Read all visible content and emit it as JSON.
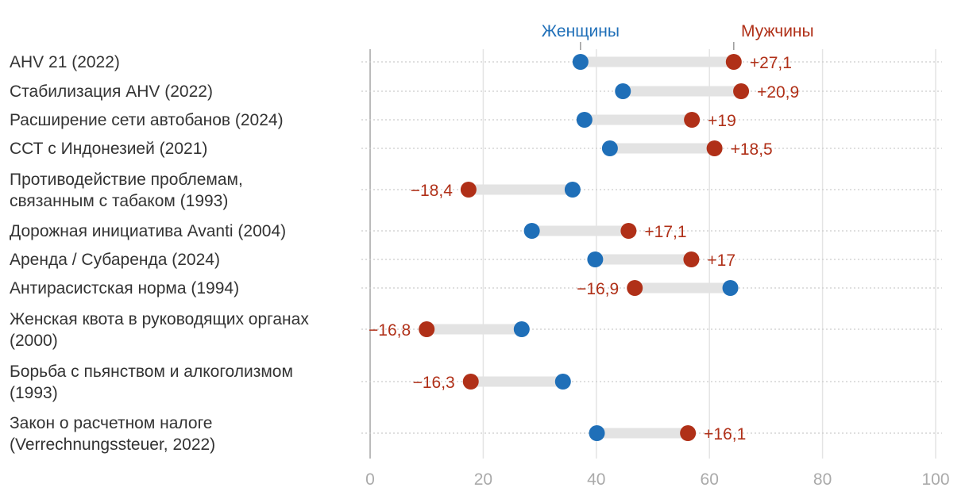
{
  "chart_data": {
    "type": "dumbbell",
    "xlim": [
      0,
      100
    ],
    "xticks": [
      "0",
      "20",
      "40",
      "60",
      "80",
      "100"
    ],
    "xtick_values": [
      0,
      20,
      40,
      60,
      80,
      100
    ],
    "grid": true,
    "legend": {
      "women": "Женщины",
      "men": "Мужчины",
      "placement": "top"
    },
    "colors": {
      "women": "#1f6fb8",
      "men": "#b03018",
      "bar": "#e3e3e3"
    },
    "rows": [
      {
        "label": [
          "AHV 21 (2022)"
        ],
        "women": 37.2,
        "men": 64.3,
        "diff": "+27,1"
      },
      {
        "label": [
          "Стабилизация AHV (2022)"
        ],
        "women": 44.7,
        "men": 65.6,
        "diff": "+20,9"
      },
      {
        "label": [
          "Расширение сети автобанов (2024)"
        ],
        "women": 37.9,
        "men": 56.9,
        "diff": "+19"
      },
      {
        "label": [
          "ССТ с Индонезией (2021)"
        ],
        "women": 42.4,
        "men": 60.9,
        "diff": "+18,5"
      },
      {
        "label": [
          "Противодействие проблемам,",
          "связанным с табаком (1993)"
        ],
        "women": 35.8,
        "men": 17.4,
        "diff": "−18,4"
      },
      {
        "label": [
          "Дорожная инициатива Avanti (2004)"
        ],
        "women": 28.6,
        "men": 45.7,
        "diff": "+17,1"
      },
      {
        "label": [
          "Аренда / Субаренда (2024)"
        ],
        "women": 39.8,
        "men": 56.8,
        "diff": "+17"
      },
      {
        "label": [
          "Антирасистская норма (1994)"
        ],
        "women": 63.7,
        "men": 46.8,
        "diff": "−16,9"
      },
      {
        "label": [
          "Женская квота в руководящих органах",
          "(2000)"
        ],
        "women": 26.8,
        "men": 10.0,
        "diff": "−16,8"
      },
      {
        "label": [
          "Борьба с пьянством и алкоголизмом",
          "(1993)"
        ],
        "women": 34.1,
        "men": 17.8,
        "diff": "−16,3"
      },
      {
        "label": [
          "Закон о расчетном налоге",
          "(Verrechnungssteuer, 2022)"
        ],
        "women": 40.1,
        "men": 56.2,
        "diff": "+16,1"
      }
    ]
  }
}
